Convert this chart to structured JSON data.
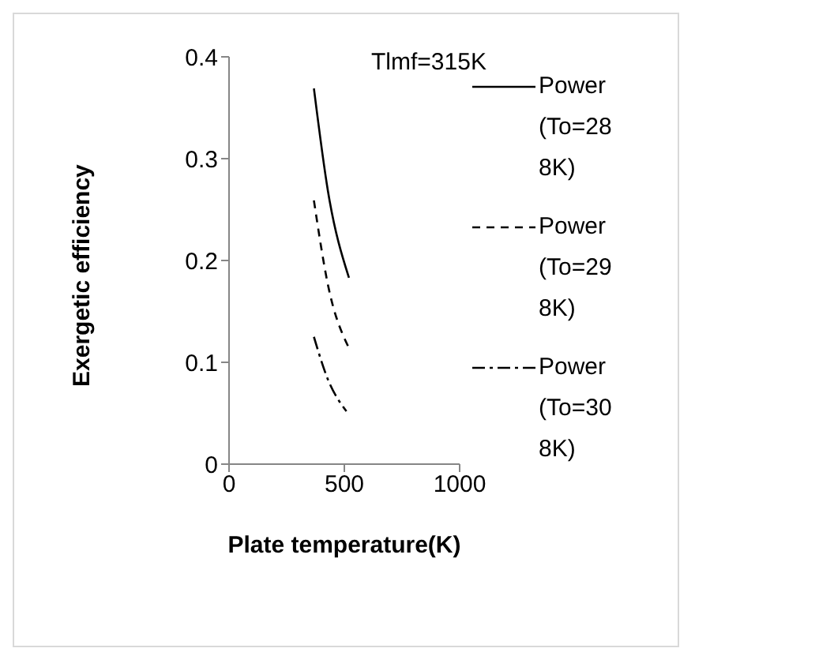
{
  "chart_data": {
    "type": "line",
    "xlabel": "Plate temperature(K)",
    "ylabel": "Exergetic efficiency",
    "xlim": [
      0,
      1000
    ],
    "xticks": [
      0,
      500,
      1000
    ],
    "ylim": [
      0,
      0.4
    ],
    "yticks": [
      0,
      0.1,
      0.2,
      0.3,
      0.4
    ],
    "legend": "right",
    "marker": "none",
    "annotations": [
      "Tlmf=315K"
    ],
    "series": [
      {
        "name": "Power (To=288K)",
        "color": "#000000",
        "line_style": "solid",
        "x": [
          368,
          429,
          520
        ],
        "values": [
          0.369,
          0.268,
          0.183
        ]
      },
      {
        "name": "Power (To=298K)",
        "color": "#000000",
        "line_style": "dashed",
        "x": [
          368,
          429,
          520
        ],
        "values": [
          0.259,
          0.176,
          0.114
        ]
      },
      {
        "name": "Power (To=308K)",
        "color": "#000000",
        "line_style": "dotted",
        "x": [
          368,
          429,
          509
        ],
        "values": [
          0.125,
          0.083,
          0.052
        ]
      }
    ]
  }
}
